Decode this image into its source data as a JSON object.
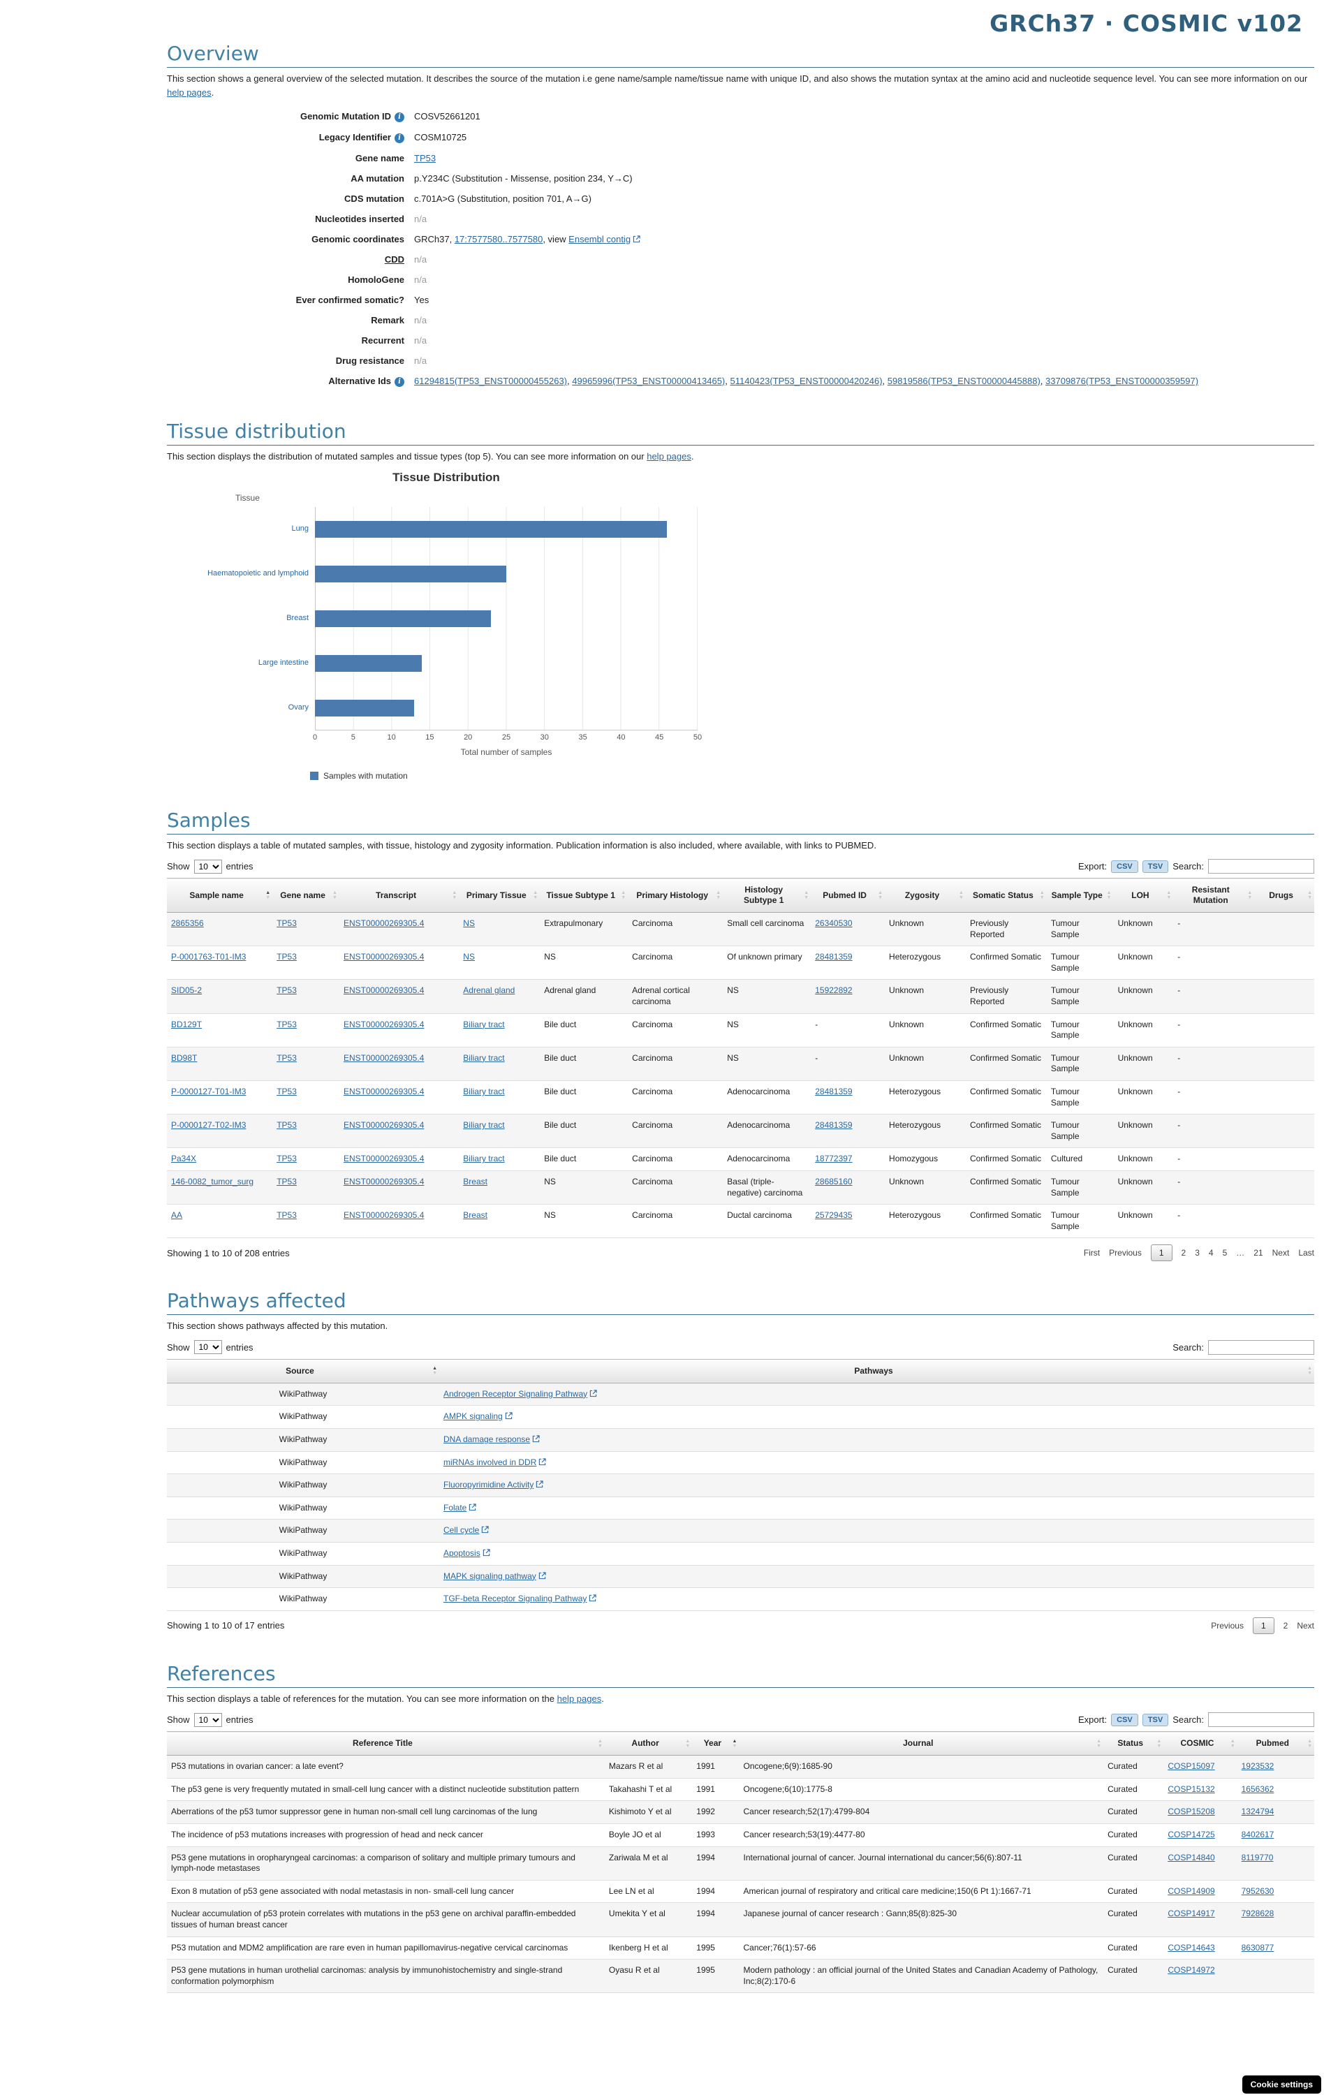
{
  "page": {
    "header_title": "GRCh37 · COSMIC v102",
    "cookie_button": "Cookie settings"
  },
  "overview": {
    "title": "Overview",
    "desc_before": "This section shows a general overview of the selected mutation. It describes the source of the mutation i.e gene name/sample name/tissue name with unique ID, and also shows the mutation syntax at the amino acid and nucleotide sequence level. You can see more information on our ",
    "desc_link": "help pages",
    "desc_after": ".",
    "fields": {
      "genomic_mutation_id": {
        "label": "Genomic Mutation ID",
        "value": "COSV52661201"
      },
      "legacy_identifier": {
        "label": "Legacy Identifier",
        "value": "COSM10725"
      },
      "gene_name": {
        "label": "Gene name",
        "value": "TP53"
      },
      "aa_mutation": {
        "label": "AA mutation",
        "value": "p.Y234C (Substitution - Missense, position 234, Y→C)"
      },
      "cds_mutation": {
        "label": "CDS mutation",
        "value": "c.701A>G (Substitution, position 701, A→G)"
      },
      "nucleotides_inserted": {
        "label": "Nucleotides inserted",
        "value": "n/a"
      },
      "genomic_coordinates": {
        "label": "Genomic coordinates",
        "prefix": "GRCh37, ",
        "coords_link": "17:7577580..7577580",
        "mid": ", view ",
        "contig_link": "Ensembl contig"
      },
      "cdd": {
        "label": "CDD",
        "value": "n/a"
      },
      "homologene": {
        "label": "HomoloGene",
        "value": "n/a"
      },
      "ever_confirmed_somatic": {
        "label": "Ever confirmed somatic?",
        "value": "Yes"
      },
      "remark": {
        "label": "Remark",
        "value": "n/a"
      },
      "recurrent": {
        "label": "Recurrent",
        "value": "n/a"
      },
      "drug_resistance": {
        "label": "Drug resistance",
        "value": "n/a"
      },
      "alternative_ids": {
        "label": "Alternative Ids",
        "links": [
          "61294815(TP53_ENST00000455263)",
          "49965996(TP53_ENST00000413465)",
          "51140423(TP53_ENST00000420246)",
          "59819586(TP53_ENST00000445888)",
          "33709876(TP53_ENST00000359597)"
        ]
      }
    }
  },
  "tissue": {
    "title": "Tissue distribution",
    "desc_before": "This section displays the distribution of mutated samples and tissue types (top 5). You can see more information on our ",
    "desc_link": "help pages",
    "desc_after": "."
  },
  "chart_data": {
    "type": "bar",
    "orientation": "horizontal",
    "title": "Tissue Distribution",
    "categories": [
      "Lung",
      "Haematopoietic and lymphoid",
      "Breast",
      "Large intestine",
      "Ovary"
    ],
    "values": [
      46,
      25,
      23,
      14,
      13
    ],
    "xlabel": "Total number of samples",
    "ylabel": "Tissue",
    "xlim": [
      0,
      50
    ],
    "tick_labels": [
      "0",
      "5",
      "10",
      "15",
      "20",
      "25",
      "30",
      "35",
      "40",
      "45",
      "50"
    ],
    "grid": true,
    "legend": [
      "Samples with mutation"
    ],
    "legend_position": "bottom",
    "bar_color": "#4a7aae"
  },
  "samples": {
    "title": "Samples",
    "description": "This section displays a table of mutated samples, with tissue, histology and zygosity information. Publication information is also included, where available, with links to PUBMED.",
    "controls": {
      "show_label": "Show",
      "entries_value": "10",
      "entries_label": "entries",
      "export_label": "Export:",
      "csv": "CSV",
      "tsv": "TSV",
      "search_label": "Search:"
    },
    "columns": [
      "Sample name",
      "Gene name",
      "Transcript",
      "Primary Tissue",
      "Tissue Subtype 1",
      "Primary Histology",
      "Histology Subtype 1",
      "Pubmed ID",
      "Zygosity",
      "Somatic Status",
      "Sample Type",
      "LOH",
      "Resistant Mutation",
      "Drugs"
    ],
    "sorted_col": 0,
    "rows": [
      [
        "2865356",
        "TP53",
        "ENST00000269305.4",
        "NS",
        "Extrapulmonary",
        "Carcinoma",
        "Small cell carcinoma",
        "26340530",
        "Unknown",
        "Previously Reported",
        "Tumour Sample",
        "Unknown",
        "-",
        ""
      ],
      [
        "P-0001763-T01-IM3",
        "TP53",
        "ENST00000269305.4",
        "NS",
        "NS",
        "Carcinoma",
        "Of unknown primary",
        "28481359",
        "Heterozygous",
        "Confirmed Somatic",
        "Tumour Sample",
        "Unknown",
        "-",
        ""
      ],
      [
        "SID05-2",
        "TP53",
        "ENST00000269305.4",
        "Adrenal gland",
        "Adrenal gland",
        "Adrenal cortical carcinoma",
        "NS",
        "15922892",
        "Unknown",
        "Previously Reported",
        "Tumour Sample",
        "Unknown",
        "-",
        ""
      ],
      [
        "BD129T",
        "TP53",
        "ENST00000269305.4",
        "Biliary tract",
        "Bile duct",
        "Carcinoma",
        "NS",
        "-",
        "Unknown",
        "Confirmed Somatic",
        "Tumour Sample",
        "Unknown",
        "-",
        ""
      ],
      [
        "BD98T",
        "TP53",
        "ENST00000269305.4",
        "Biliary tract",
        "Bile duct",
        "Carcinoma",
        "NS",
        "-",
        "Unknown",
        "Confirmed Somatic",
        "Tumour Sample",
        "Unknown",
        "-",
        ""
      ],
      [
        "P-0000127-T01-IM3",
        "TP53",
        "ENST00000269305.4",
        "Biliary tract",
        "Bile duct",
        "Carcinoma",
        "Adenocarcinoma",
        "28481359",
        "Heterozygous",
        "Confirmed Somatic",
        "Tumour Sample",
        "Unknown",
        "-",
        ""
      ],
      [
        "P-0000127-T02-IM3",
        "TP53",
        "ENST00000269305.4",
        "Biliary tract",
        "Bile duct",
        "Carcinoma",
        "Adenocarcinoma",
        "28481359",
        "Heterozygous",
        "Confirmed Somatic",
        "Tumour Sample",
        "Unknown",
        "-",
        ""
      ],
      [
        "Pa34X",
        "TP53",
        "ENST00000269305.4",
        "Biliary tract",
        "Bile duct",
        "Carcinoma",
        "Adenocarcinoma",
        "18772397",
        "Homozygous",
        "Confirmed Somatic",
        "Cultured",
        "Unknown",
        "-",
        ""
      ],
      [
        "146-0082_tumor_surg",
        "TP53",
        "ENST00000269305.4",
        "Breast",
        "NS",
        "Carcinoma",
        "Basal (triple-negative) carcinoma",
        "28685160",
        "Unknown",
        "Confirmed Somatic",
        "Tumour Sample",
        "Unknown",
        "-",
        ""
      ],
      [
        "AA",
        "TP53",
        "ENST00000269305.4",
        "Breast",
        "NS",
        "Carcinoma",
        "Ductal carcinoma",
        "25729435",
        "Heterozygous",
        "Confirmed Somatic",
        "Tumour Sample",
        "Unknown",
        "-",
        ""
      ]
    ],
    "footer": {
      "showing": "Showing 1 to 10 of 208 entries",
      "first": "First",
      "previous": "Previous",
      "pages": [
        "1",
        "2",
        "3",
        "4",
        "5"
      ],
      "ellipsis": "…",
      "last_page": "21",
      "next": "Next",
      "last": "Last"
    }
  },
  "pathways": {
    "title": "Pathways affected",
    "description": "This section shows pathways affected by this mutation.",
    "controls": {
      "show_label": "Show",
      "entries_value": "10",
      "entries_label": "entries",
      "search_label": "Search:"
    },
    "columns": [
      "Source",
      "Pathways"
    ],
    "sorted_col": 0,
    "rows": [
      {
        "source": "WikiPathway",
        "pathway": "Androgen Receptor Signaling Pathway"
      },
      {
        "source": "WikiPathway",
        "pathway": "AMPK signaling"
      },
      {
        "source": "WikiPathway",
        "pathway": "DNA damage response"
      },
      {
        "source": "WikiPathway",
        "pathway": "miRNAs involved in DDR"
      },
      {
        "source": "WikiPathway",
        "pathway": "Fluoropyrimidine Activity"
      },
      {
        "source": "WikiPathway",
        "pathway": "Folate"
      },
      {
        "source": "WikiPathway",
        "pathway": "Cell cycle"
      },
      {
        "source": "WikiPathway",
        "pathway": "Apoptosis"
      },
      {
        "source": "WikiPathway",
        "pathway": "MAPK signaling pathway"
      },
      {
        "source": "WikiPathway",
        "pathway": "TGF-beta Receptor Signaling Pathway"
      }
    ],
    "footer": {
      "showing": "Showing 1 to 10 of 17 entries",
      "previous": "Previous",
      "pages": [
        "1",
        "2"
      ],
      "next": "Next"
    }
  },
  "references": {
    "title": "References",
    "desc_before": "This section displays a table of references for the mutation. You can see more information on the ",
    "desc_link": "help pages",
    "desc_after": ".",
    "controls": {
      "show_label": "Show",
      "entries_value": "10",
      "entries_label": "entries",
      "export_label": "Export:",
      "csv": "CSV",
      "tsv": "TSV",
      "search_label": "Search:"
    },
    "columns": [
      "Reference Title",
      "Author",
      "Year",
      "Journal",
      "Status",
      "COSMIC",
      "Pubmed"
    ],
    "sorted_col": 2,
    "rows": [
      [
        "P53 mutations in ovarian cancer: a late event?",
        "Mazars R et al",
        "1991",
        "Oncogene;6(9):1685-90",
        "Curated",
        "COSP15097",
        "1923532"
      ],
      [
        "The p53 gene is very frequently mutated in small-cell lung cancer with a distinct nucleotide substitution pattern",
        "Takahashi T et al",
        "1991",
        "Oncogene;6(10):1775-8",
        "Curated",
        "COSP15132",
        "1656362"
      ],
      [
        "Aberrations of the p53 tumor suppressor gene in human non-small cell lung carcinomas of the lung",
        "Kishimoto Y et al",
        "1992",
        "Cancer research;52(17):4799-804",
        "Curated",
        "COSP15208",
        "1324794"
      ],
      [
        "The incidence of p53 mutations increases with progression of head and neck cancer",
        "Boyle JO et al",
        "1993",
        "Cancer research;53(19):4477-80",
        "Curated",
        "COSP14725",
        "8402617"
      ],
      [
        "P53 gene mutations in oropharyngeal carcinomas: a comparison of solitary and multiple primary tumours and lymph-node metastases",
        "Zariwala M et al",
        "1994",
        "International journal of cancer. Journal international du cancer;56(6):807-11",
        "Curated",
        "COSP14840",
        "8119770"
      ],
      [
        "Exon 8 mutation of p53 gene associated with nodal metastasis in non- small-cell lung cancer",
        "Lee LN et al",
        "1994",
        "American journal of respiratory and critical care medicine;150(6 Pt 1):1667-71",
        "Curated",
        "COSP14909",
        "7952630"
      ],
      [
        "Nuclear accumulation of p53 protein correlates with mutations in the p53 gene on archival paraffin-embedded tissues of human breast cancer",
        "Umekita Y et al",
        "1994",
        "Japanese journal of cancer research : Gann;85(8):825-30",
        "Curated",
        "COSP14917",
        "7928628"
      ],
      [
        "P53 mutation and MDM2 amplification are rare even in human papillomavirus-negative cervical carcinomas",
        "Ikenberg H et al",
        "1995",
        "Cancer;76(1):57-66",
        "Curated",
        "COSP14643",
        "8630877"
      ],
      [
        "P53 gene mutations in human urothelial carcinomas: analysis by immunohistochemistry and single-strand conformation polymorphism",
        "Oyasu R et al",
        "1995",
        "Modern pathology : an official journal of the United States and Canadian Academy of Pathology, Inc;8(2):170-6",
        "Curated",
        "COSP14972",
        ""
      ]
    ]
  }
}
